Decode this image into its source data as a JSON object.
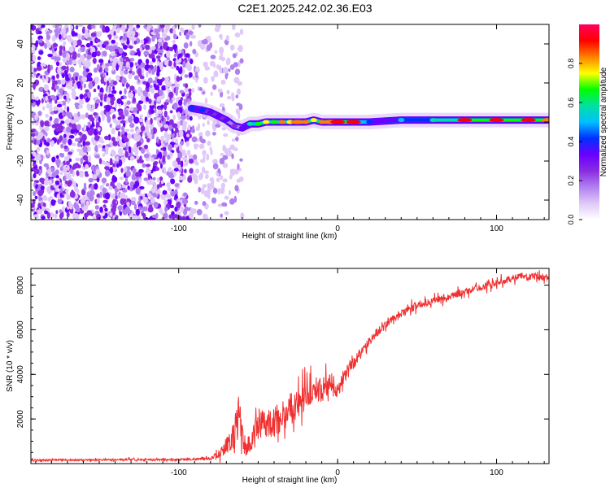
{
  "figure": {
    "title": "C2E1.2025.242.02.36.E03"
  },
  "colors": {
    "snr_line": "#f03030",
    "background": "#ffffff",
    "colormap": [
      "#ffffff",
      "#e0c8f8",
      "#b080f0",
      "#8a2be2",
      "#6a00ff",
      "#0030ff",
      "#00c0ff",
      "#00e0a0",
      "#00ff00",
      "#ffff00",
      "#ff8000",
      "#ff0000",
      "#ff0060"
    ]
  },
  "chart_data": [
    {
      "type": "heatmap",
      "name": "spectrogram",
      "title": "",
      "xlabel": "Height of straight line (km)",
      "ylabel": "Frequency (Hz)",
      "xlim": [
        -193,
        133
      ],
      "ylim": [
        -50,
        50
      ],
      "x_ticks": [
        -100,
        0,
        100
      ],
      "x_tick_labels": [
        "-100",
        "0",
        "100"
      ],
      "y_ticks": [
        -40,
        -20,
        0,
        20,
        40
      ],
      "y_tick_labels": [
        "-40",
        "-20",
        "0",
        "20",
        "40"
      ],
      "grid": false,
      "noise_region": {
        "x_range": [
          -193,
          -60
        ],
        "freq_range": [
          -50,
          50
        ]
      },
      "signal_track": {
        "x": [
          -92,
          -85,
          -80,
          -75,
          -70,
          -65,
          -60,
          -55,
          -50,
          -45,
          -40,
          -35,
          -30,
          -25,
          -20,
          -15,
          -10,
          -5,
          0,
          10,
          20,
          40,
          60,
          80,
          100,
          120,
          133
        ],
        "freq": [
          7,
          6,
          5,
          3,
          1,
          -2,
          -3,
          -1,
          -1,
          0,
          0,
          0,
          0,
          0,
          0,
          1,
          0,
          0,
          0,
          0,
          0,
          1,
          1,
          1,
          1,
          1,
          1
        ],
        "amplitude": [
          0.45,
          0.4,
          0.35,
          0.3,
          0.3,
          0.25,
          0.3,
          0.6,
          0.7,
          0.75,
          0.7,
          0.8,
          0.75,
          0.85,
          0.8,
          0.75,
          0.8,
          0.85,
          0.95,
          0.9,
          0.45,
          0.5,
          0.6,
          0.95,
          0.9,
          0.95,
          0.85
        ]
      },
      "colorbar": {
        "label": "Normalized spectral amplitude",
        "range": [
          0,
          1
        ],
        "ticks": [
          0,
          0.2,
          0.4,
          0.6,
          0.8
        ],
        "tick_labels": [
          "0.0",
          "0.2",
          "0.4",
          "0.6",
          "0.8"
        ]
      }
    },
    {
      "type": "line",
      "name": "snr",
      "title": "",
      "xlabel": "Height of straight line (km)",
      "ylabel": "SNR (10 * v/v)",
      "xlim": [
        -193,
        133
      ],
      "ylim": [
        0,
        8750
      ],
      "x_ticks": [
        -100,
        0,
        100
      ],
      "x_tick_labels": [
        "-100",
        "0",
        "100"
      ],
      "y_ticks": [
        2000,
        4000,
        6000,
        8000
      ],
      "y_tick_labels": [
        "2000",
        "4000",
        "6000",
        "8000"
      ],
      "grid": false,
      "series": [
        {
          "name": "SNR",
          "x": [
            -193,
            -180,
            -160,
            -140,
            -120,
            -100,
            -90,
            -80,
            -75,
            -70,
            -65,
            -62,
            -60,
            -58,
            -55,
            -52,
            -50,
            -48,
            -45,
            -42,
            -40,
            -38,
            -35,
            -32,
            -30,
            -28,
            -25,
            -22,
            -20,
            -18,
            -15,
            -12,
            -10,
            -8,
            -5,
            -3,
            0,
            3,
            5,
            8,
            10,
            13,
            15,
            18,
            20,
            25,
            30,
            35,
            40,
            45,
            50,
            55,
            60,
            65,
            70,
            75,
            80,
            85,
            90,
            95,
            100,
            105,
            110,
            115,
            120,
            125,
            133
          ],
          "values": [
            150,
            160,
            160,
            170,
            170,
            180,
            200,
            230,
            400,
            800,
            1300,
            2200,
            1400,
            700,
            900,
            1400,
            1600,
            1700,
            1800,
            1900,
            1800,
            2000,
            2100,
            2300,
            2500,
            2600,
            2700,
            2900,
            3000,
            3100,
            3300,
            3400,
            3300,
            3400,
            3600,
            3500,
            3200,
            3800,
            4100,
            4400,
            4500,
            4800,
            5100,
            5300,
            5500,
            5900,
            6200,
            6500,
            6700,
            6900,
            7100,
            7200,
            7300,
            7400,
            7500,
            7600,
            7700,
            7800,
            7900,
            8000,
            8100,
            8200,
            8300,
            8400,
            8350,
            8400,
            8350
          ],
          "noise": [
            60,
            60,
            60,
            60,
            60,
            70,
            80,
            100,
            250,
            500,
            900,
            1500,
            1100,
            600,
            700,
            800,
            900,
            900,
            900,
            1000,
            1000,
            1000,
            1000,
            1000,
            1000,
            1000,
            900,
            900,
            900,
            800,
            800,
            800,
            800,
            700,
            700,
            700,
            600,
            500,
            450,
            400,
            400,
            350,
            350,
            300,
            300,
            300,
            250,
            250,
            250,
            250,
            250,
            250,
            250,
            250,
            220,
            220,
            220,
            220,
            220,
            220,
            220,
            220,
            220,
            220,
            220,
            220,
            220
          ]
        }
      ]
    }
  ]
}
